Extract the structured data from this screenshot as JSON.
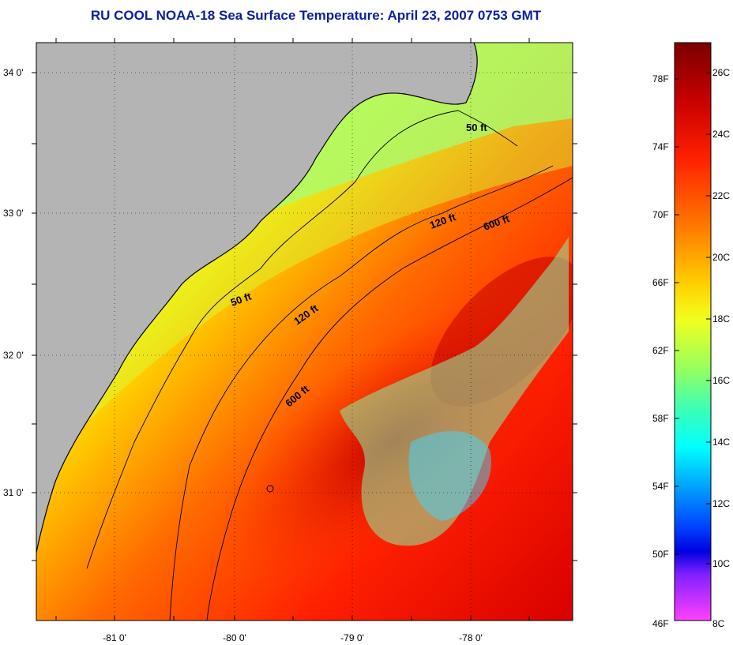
{
  "title": "RU COOL  NOAA-18  Sea Surface Temperature:  April 23, 2007 0753 GMT",
  "map": {
    "lat_ticks": [
      "34 0'",
      "33 0'",
      "32 0'",
      "31 0'"
    ],
    "lon_ticks": [
      "-81 0'",
      "-80 0'",
      "-79 0'",
      "-78 0'"
    ],
    "contour_labels": [
      "50 ft",
      "120 ft",
      "600 ft",
      "50 ft",
      "120 ft",
      "600 ft"
    ],
    "land_color": "#b4b4b4",
    "grid": "dotted"
  },
  "colorbar": {
    "fahrenheit_labels": [
      "78F",
      "74F",
      "70F",
      "66F",
      "62F",
      "58F",
      "54F",
      "50F",
      "46F"
    ],
    "celsius_labels": [
      "26C",
      "24C",
      "22C",
      "20C",
      "18C",
      "16C",
      "14C",
      "12C",
      "10C",
      "8C"
    ],
    "colors_top_to_bottom": [
      "#7a0000",
      "#c80000",
      "#ff2000",
      "#ff7a00",
      "#ffd200",
      "#f0ff20",
      "#9cff5a",
      "#40ffb0",
      "#00ffff",
      "#00a0ff",
      "#0040ff",
      "#0000e0",
      "#8020ff",
      "#ff40ff"
    ]
  }
}
